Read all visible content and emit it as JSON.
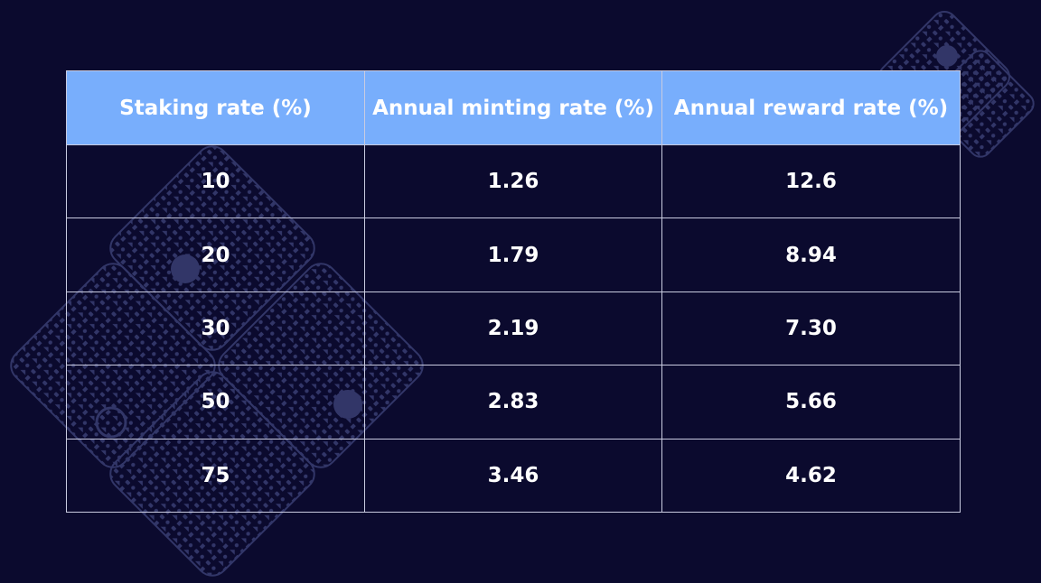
{
  "colors": {
    "background": "#0b0a2e",
    "header_fill": "#78aefc",
    "grid_line": "#c9cbe0",
    "text": "#ffffff",
    "decoration": "#3a3f73"
  },
  "chart_data": {
    "type": "table",
    "columns": [
      "Staking rate (%)",
      "Annual minting rate (%)",
      "Annual reward rate (%)"
    ],
    "rows": [
      [
        "10",
        "1.26",
        "12.6"
      ],
      [
        "20",
        "1.79",
        "8.94"
      ],
      [
        "30",
        "2.19",
        "7.30"
      ],
      [
        "50",
        "2.83",
        "5.66"
      ],
      [
        "75",
        "3.46",
        "4.62"
      ]
    ]
  }
}
